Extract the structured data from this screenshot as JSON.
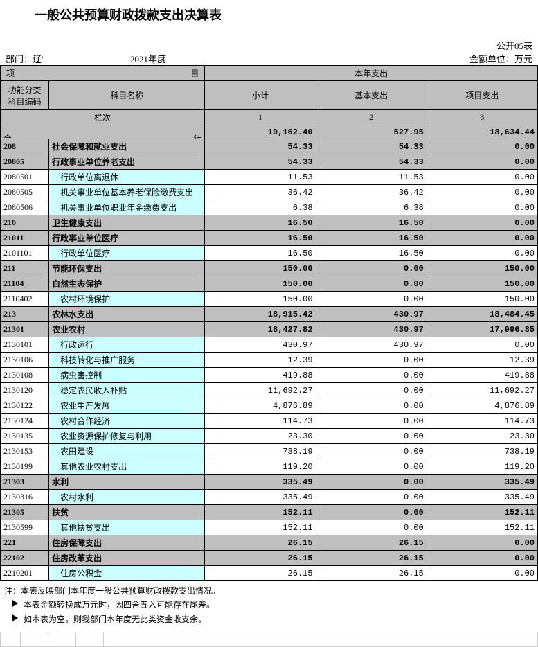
{
  "title": "一般公共预算财政拨款支出决算表",
  "meta": {
    "dept_label": "部门：辽'",
    "year": "2021年度",
    "sheet_code": "公开05表",
    "unit": "金额单位：万元"
  },
  "headers": {
    "proj_l": "项",
    "proj_r": "目",
    "this_year": "本年支出",
    "func_code": "功能分类\n科目编码",
    "subj_name": "科目名称",
    "subtotal": "小计",
    "basic": "基本支出",
    "project": "项目支出",
    "lane": "栏次",
    "c1": "1",
    "c2": "2",
    "c3": "3",
    "total_l": "合",
    "total_r": "计"
  },
  "total": {
    "v1": "19,162.40",
    "v2": "527.95",
    "v3": "18,634.44"
  },
  "rows": [
    {
      "lvl": "grey",
      "code": "208",
      "name": "社会保障和就业支出",
      "v1": "54.33",
      "v2": "54.33",
      "v3": "0.00"
    },
    {
      "lvl": "grey",
      "code": "20805",
      "name": "行政事业单位养老支出",
      "v1": "54.33",
      "v2": "54.33",
      "v3": "0.00"
    },
    {
      "lvl": "cyan",
      "code": "2080501",
      "name": "　行政单位离退休",
      "v1": "11.53",
      "v2": "11.53",
      "v3": "0.00"
    },
    {
      "lvl": "cyan",
      "code": "2080505",
      "name": "　机关事业单位基本养老保险缴费支出",
      "v1": "36.42",
      "v2": "36.42",
      "v3": "0.00"
    },
    {
      "lvl": "cyan",
      "code": "2080506",
      "name": "　机关事业单位职业年金缴费支出",
      "v1": "6.38",
      "v2": "6.38",
      "v3": "0.00"
    },
    {
      "lvl": "grey",
      "code": "210",
      "name": "卫生健康支出",
      "v1": "16.50",
      "v2": "16.50",
      "v3": "0.00"
    },
    {
      "lvl": "grey",
      "code": "21011",
      "name": "行政事业单位医疗",
      "v1": "16.50",
      "v2": "16.50",
      "v3": "0.00"
    },
    {
      "lvl": "cyan",
      "code": "2101101",
      "name": "　行政单位医疗",
      "v1": "16.50",
      "v2": "16.50",
      "v3": "0.00"
    },
    {
      "lvl": "grey",
      "code": "211",
      "name": "节能环保支出",
      "v1": "150.00",
      "v2": "0.00",
      "v3": "150.00"
    },
    {
      "lvl": "grey",
      "code": "21104",
      "name": "自然生态保护",
      "v1": "150.00",
      "v2": "0.00",
      "v3": "150.00"
    },
    {
      "lvl": "cyan",
      "code": "2110402",
      "name": "　农村环境保护",
      "v1": "150.00",
      "v2": "0.00",
      "v3": "150.00"
    },
    {
      "lvl": "grey",
      "code": "213",
      "name": "农林水支出",
      "v1": "18,915.42",
      "v2": "430.97",
      "v3": "18,484.45"
    },
    {
      "lvl": "grey",
      "code": "21301",
      "name": "农业农村",
      "v1": "18,427.82",
      "v2": "430.97",
      "v3": "17,996.85"
    },
    {
      "lvl": "cyan",
      "code": "2130101",
      "name": "　行政运行",
      "v1": "430.97",
      "v2": "430.97",
      "v3": "0.00"
    },
    {
      "lvl": "cyan",
      "code": "2130106",
      "name": "　科技转化与推广服务",
      "v1": "12.39",
      "v2": "0.00",
      "v3": "12.39"
    },
    {
      "lvl": "cyan",
      "code": "2130108",
      "name": "　病虫害控制",
      "v1": "419.88",
      "v2": "0.00",
      "v3": "419.88"
    },
    {
      "lvl": "cyan",
      "code": "2130120",
      "name": "　稳定农民收入补贴",
      "v1": "11,692.27",
      "v2": "0.00",
      "v3": "11,692.27"
    },
    {
      "lvl": "cyan",
      "code": "2130122",
      "name": "　农业生产发展",
      "v1": "4,876.89",
      "v2": "0.00",
      "v3": "4,876.89"
    },
    {
      "lvl": "cyan",
      "code": "2130124",
      "name": "　农村合作经济",
      "v1": "114.73",
      "v2": "0.00",
      "v3": "114.73"
    },
    {
      "lvl": "cyan",
      "code": "2130135",
      "name": "　农业资源保护修复与利用",
      "v1": "23.30",
      "v2": "0.00",
      "v3": "23.30"
    },
    {
      "lvl": "cyan",
      "code": "2130153",
      "name": "　农田建设",
      "v1": "738.19",
      "v2": "0.00",
      "v3": "738.19"
    },
    {
      "lvl": "cyan",
      "code": "2130199",
      "name": "　其他农业农村支出",
      "v1": "119.20",
      "v2": "0.00",
      "v3": "119.20"
    },
    {
      "lvl": "grey",
      "code": "21303",
      "name": "水利",
      "v1": "335.49",
      "v2": "0.00",
      "v3": "335.49"
    },
    {
      "lvl": "cyan",
      "code": "2130316",
      "name": "　农村水利",
      "v1": "335.49",
      "v2": "0.00",
      "v3": "335.49"
    },
    {
      "lvl": "grey",
      "code": "21305",
      "name": "扶贫",
      "v1": "152.11",
      "v2": "0.00",
      "v3": "152.11"
    },
    {
      "lvl": "cyan",
      "code": "2130599",
      "name": "　其他扶贫支出",
      "v1": "152.11",
      "v2": "0.00",
      "v3": "152.11"
    },
    {
      "lvl": "grey",
      "code": "221",
      "name": "住房保障支出",
      "v1": "26.15",
      "v2": "26.15",
      "v3": "0.00"
    },
    {
      "lvl": "grey",
      "code": "22102",
      "name": "住房改革支出",
      "v1": "26.15",
      "v2": "26.15",
      "v3": "0.00"
    },
    {
      "lvl": "cyan",
      "code": "2210201",
      "name": "　住房公积金",
      "v1": "26.15",
      "v2": "26.15",
      "v3": "0.00"
    }
  ],
  "notes": {
    "n1": "注：本表反映部门本年度一般公共预算财政拨款支出情况。",
    "n2": "本表金额转换成万元时，因四舍五入可能存在尾差。",
    "n3": "如本表为空，则我部门本年度无此类资金收支余。"
  },
  "style": {
    "grey": "#bfbfbf",
    "cyan": "#ccffff",
    "white": "#ffffff",
    "border": "#000000"
  }
}
